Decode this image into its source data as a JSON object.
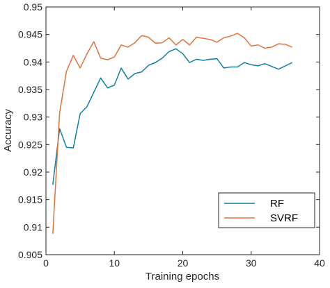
{
  "chart_data": {
    "type": "line",
    "title": "",
    "xlabel": "Training epochs",
    "ylabel": "Accuracy",
    "xlim": [
      0,
      40
    ],
    "ylim": [
      0.905,
      0.95
    ],
    "xticks": [
      "0",
      "10",
      "20",
      "30",
      "40"
    ],
    "yticks": [
      "0.905",
      "0.91",
      "0.915",
      "0.92",
      "0.925",
      "0.93",
      "0.935",
      "0.94",
      "0.945",
      "0.95"
    ],
    "grid": false,
    "legend_position": "bottom-right",
    "x": [
      1,
      2,
      3,
      4,
      5,
      6,
      7,
      8,
      9,
      10,
      11,
      12,
      13,
      14,
      15,
      16,
      17,
      18,
      19,
      20,
      21,
      22,
      23,
      24,
      25,
      26,
      27,
      28,
      29,
      30,
      31,
      32,
      33,
      34,
      35,
      36
    ],
    "series": [
      {
        "name": "RF",
        "color": "#0e7fa5",
        "values": [
          0.9177,
          0.9279,
          0.9245,
          0.9244,
          0.9306,
          0.9319,
          0.9345,
          0.9371,
          0.9353,
          0.9358,
          0.9389,
          0.9369,
          0.9379,
          0.9382,
          0.9394,
          0.9399,
          0.9407,
          0.9419,
          0.9424,
          0.9415,
          0.9399,
          0.9405,
          0.9403,
          0.9405,
          0.9406,
          0.9389,
          0.9391,
          0.9391,
          0.9399,
          0.9395,
          0.9393,
          0.9397,
          0.9392,
          0.9387,
          0.9393,
          0.9399
        ]
      },
      {
        "name": "SVRF",
        "color": "#e0733a",
        "values": [
          0.9088,
          0.9308,
          0.9383,
          0.9412,
          0.9389,
          0.9415,
          0.9437,
          0.9407,
          0.9404,
          0.9409,
          0.9431,
          0.9427,
          0.9435,
          0.9448,
          0.9445,
          0.9434,
          0.9435,
          0.9444,
          0.9431,
          0.9441,
          0.9431,
          0.9445,
          0.9443,
          0.9441,
          0.9436,
          0.9444,
          0.9447,
          0.9452,
          0.9444,
          0.9429,
          0.9431,
          0.9425,
          0.9427,
          0.9433,
          0.9432,
          0.9427
        ]
      }
    ]
  }
}
